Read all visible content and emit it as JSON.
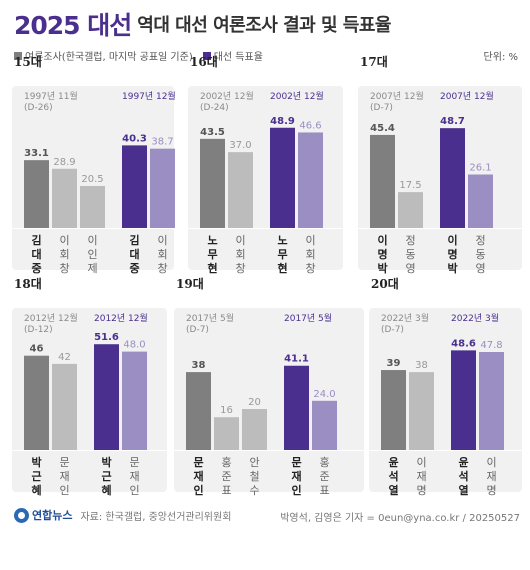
{
  "header": {
    "year": "2025 대선",
    "title": "역대 대선 여론조사 결과 및 득표율"
  },
  "legend": {
    "poll_label": "여론조사(한국갤럽, 마지막 공표일 기준)",
    "vote_label": "대선 득표율"
  },
  "unit": "단위: %",
  "colors": {
    "poll_dark": "#7f7f7f",
    "poll_light": "#bcbcbc",
    "vote_dark": "#4a2f8f",
    "vote_light": "#9b8ec2",
    "label_dark": "#222222",
    "label_light": "#666666",
    "vote_header": "#4a2f8f",
    "poll_header": "#8a8a8a"
  },
  "chart_data": [
    {
      "type": "bar",
      "election": "15대",
      "poll_date": "1997년 11월",
      "poll_dday": "(D-26)",
      "vote_date": "1997년 12월",
      "poll": {
        "candidates": [
          "김대중",
          "이회창",
          "이인제"
        ],
        "values": [
          33.1,
          28.9,
          20.5
        ]
      },
      "vote": {
        "candidates": [
          "김대중",
          "이회창"
        ],
        "values": [
          40.3,
          38.7
        ]
      }
    },
    {
      "type": "bar",
      "election": "16대",
      "poll_date": "2002년 12월",
      "poll_dday": "(D-24)",
      "vote_date": "2002년 12월",
      "poll": {
        "candidates": [
          "노무현",
          "이회창"
        ],
        "values": [
          43.5,
          37.0
        ]
      },
      "vote": {
        "candidates": [
          "노무현",
          "이회창"
        ],
        "values": [
          48.9,
          46.6
        ]
      }
    },
    {
      "type": "bar",
      "election": "17대",
      "poll_date": "2007년 12월",
      "poll_dday": "(D-7)",
      "vote_date": "2007년 12월",
      "poll": {
        "candidates": [
          "이명박",
          "정동영"
        ],
        "values": [
          45.4,
          17.5
        ]
      },
      "vote": {
        "candidates": [
          "이명박",
          "정동영"
        ],
        "values": [
          48.7,
          26.1
        ]
      }
    },
    {
      "type": "bar",
      "election": "18대",
      "poll_date": "2012년 12월",
      "poll_dday": "(D-12)",
      "vote_date": "2012년 12월",
      "poll": {
        "candidates": [
          "박근혜",
          "문재인"
        ],
        "values": [
          46,
          42
        ]
      },
      "vote": {
        "candidates": [
          "박근혜",
          "문재인"
        ],
        "values": [
          51.6,
          48.0
        ]
      }
    },
    {
      "type": "bar",
      "election": "19대",
      "poll_date": "2017년 5월",
      "poll_dday": "(D-7)",
      "vote_date": "2017년 5월",
      "poll": {
        "candidates": [
          "문재인",
          "홍준표",
          "안철수"
        ],
        "values": [
          38,
          16,
          20
        ]
      },
      "vote": {
        "candidates": [
          "문재인",
          "홍준표"
        ],
        "values": [
          41.1,
          24.0
        ]
      }
    },
    {
      "type": "bar",
      "election": "20대",
      "poll_date": "2022년 3월",
      "poll_dday": "(D-7)",
      "vote_date": "2022년 3월",
      "poll": {
        "candidates": [
          "윤석열",
          "이재명"
        ],
        "values": [
          39,
          38
        ]
      },
      "vote": {
        "candidates": [
          "윤석열",
          "이재명"
        ],
        "values": [
          48.6,
          47.8
        ]
      }
    }
  ],
  "footer": {
    "logo": "연합뉴스",
    "source": "자료: 한국갤럽, 중앙선거관리위원회",
    "credit": "박영석, 김영은 기자 = 0eun@yna.co.kr / 20250527"
  }
}
